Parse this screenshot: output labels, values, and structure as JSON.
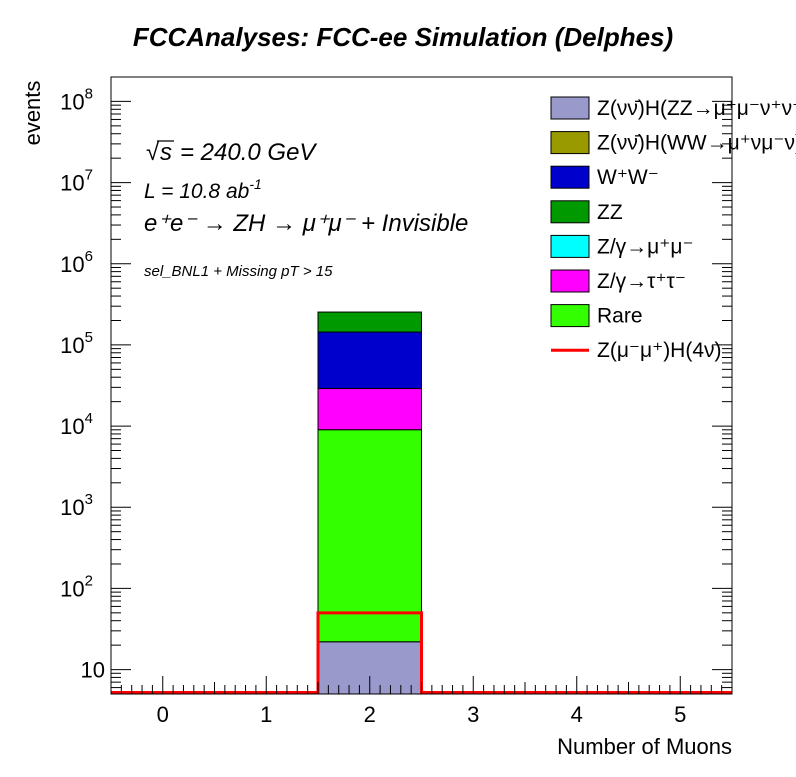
{
  "chart_data": {
    "type": "bar",
    "stacked": true,
    "title": "FCCAnalyses: FCC-ee Simulation (Delphes)",
    "xlabel": "Number of Muons",
    "ylabel": "events",
    "yscale": "log",
    "ylim": [
      5,
      200000000
    ],
    "xlim": [
      -0.5,
      5.5
    ],
    "xticks": [
      0,
      1,
      2,
      3,
      4,
      5
    ],
    "ytick_labels": [
      {
        "value": 10,
        "label": "10"
      },
      {
        "value": 100,
        "label": "10",
        "exp": "2"
      },
      {
        "value": 1000,
        "label": "10",
        "exp": "3"
      },
      {
        "value": 10000,
        "label": "10",
        "exp": "4"
      },
      {
        "value": 100000,
        "label": "10",
        "exp": "5"
      },
      {
        "value": 1000000,
        "label": "10",
        "exp": "6"
      },
      {
        "value": 10000000,
        "label": "10",
        "exp": "7"
      },
      {
        "value": 100000000,
        "label": "10",
        "exp": "8"
      }
    ],
    "bin": [
      1.5,
      2.5
    ],
    "stack": [
      {
        "name": "Z(νν̄)H(ZZ→μ⁺μ⁻ν⁺ν⁻)",
        "color": "#9999cc",
        "value": 22
      },
      {
        "name": "Z(νν̄)H(WW→μ⁺νμ⁻ν)",
        "color": "#999900",
        "value": 0
      },
      {
        "name": "Rare",
        "color": "#33ff00",
        "value": 9000
      },
      {
        "name": "Z/γ→τ⁺τ⁻",
        "color": "#ff00ff",
        "value": 20000
      },
      {
        "name": "Z/γ→μ⁺μ⁻",
        "color": "#00ffff",
        "value": 0
      },
      {
        "name": "W⁺W⁻",
        "color": "#0000cc",
        "value": 115000
      },
      {
        "name": "ZZ",
        "color": "#009900",
        "value": 110000
      }
    ],
    "signal": {
      "name": "Z(μ⁻μ⁺)H(4ν)",
      "color": "#ff0000",
      "value": 50
    },
    "legend_entries": [
      {
        "text": "Z(νν̄)H(ZZ→μ⁺μ⁻ν⁺ν⁻)",
        "color": "#9999cc",
        "kind": "box"
      },
      {
        "text": "Z(νν̄)H(WW→μ⁺νμ⁻ν)",
        "color": "#999900",
        "kind": "box"
      },
      {
        "text": "W⁺W⁻",
        "color": "#0000cc",
        "kind": "box"
      },
      {
        "text": "ZZ",
        "color": "#009900",
        "kind": "box"
      },
      {
        "text": "Z/γ→μ⁺μ⁻",
        "color": "#00ffff",
        "kind": "box"
      },
      {
        "text": "Z/γ→τ⁺τ⁻",
        "color": "#ff00ff",
        "kind": "box"
      },
      {
        "text": "Rare",
        "color": "#33ff00",
        "kind": "box"
      },
      {
        "text": "Z(μ⁻μ⁺)H(4ν)",
        "color": "#ff0000",
        "kind": "line"
      }
    ],
    "legend_position": "top-right",
    "annotations": {
      "sqrt_s": "= 240.0 GeV",
      "lumi": "L = 10.8 ab",
      "lumi_exp": "-1",
      "process": "e⁺e⁻ → ZH → μ⁺μ⁻ + Invisible",
      "selection": "sel_BNL1 + Missing pT > 15"
    }
  }
}
